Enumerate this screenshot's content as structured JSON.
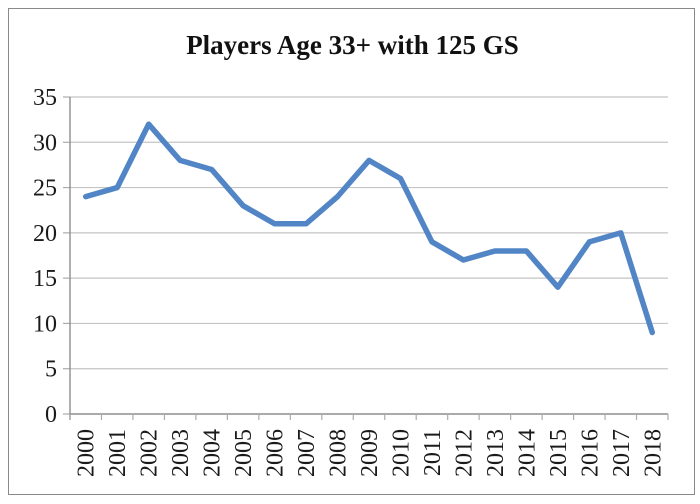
{
  "frame": {
    "background": "#ffffff",
    "border_color": "#8a8a8a"
  },
  "chart_data": {
    "type": "line",
    "title": "Players Age 33+ with 125 GS",
    "categories": [
      "2000",
      "2001",
      "2002",
      "2003",
      "2004",
      "2005",
      "2006",
      "2007",
      "2008",
      "2009",
      "2010",
      "2011",
      "2012",
      "2013",
      "2014",
      "2015",
      "2016",
      "2017",
      "2018"
    ],
    "series": [
      {
        "name": "Players Age 33+ with 125 GS",
        "color": "#5185C5",
        "values": [
          24,
          25,
          32,
          28,
          27,
          23,
          21,
          21,
          24,
          28,
          26,
          19,
          17,
          18,
          18,
          14,
          19,
          20,
          9
        ]
      }
    ],
    "xlabel": "",
    "ylabel": "",
    "ylim": [
      0,
      35
    ],
    "yticks": [
      0,
      5,
      10,
      15,
      20,
      25,
      30,
      35
    ],
    "grid": "horizontal",
    "legend": "none",
    "line_width": 5.5,
    "colors": {
      "gridline": "#c4c4c4",
      "axis": "#8e8e8e",
      "tick": "#ababab",
      "label": "#1a1a1a"
    }
  }
}
